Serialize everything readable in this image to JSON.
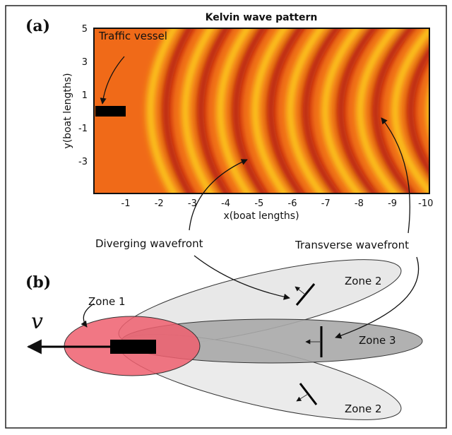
{
  "panel_a": {
    "label": "(a)",
    "title": "Kelvin wave pattern",
    "y_axis_label": "y(boat lengths)",
    "x_axis_label": "x(boat lengths)",
    "y_ticks": [
      "5",
      "3",
      "1",
      "-1",
      "-3"
    ],
    "x_ticks": [
      "-1",
      "-2",
      "-3",
      "-4",
      "-5",
      "-6",
      "-7",
      "-8",
      "-9",
      "-10"
    ],
    "vessel_label": "Traffic vessel"
  },
  "annotations": {
    "diverging": "Diverging wavefront",
    "transverse": "Transverse wavefront"
  },
  "panel_b": {
    "label": "(b)",
    "velocity": "v",
    "zones": [
      "Zone 1",
      "Zone 2",
      "Zone 3",
      "Zone 2"
    ]
  }
}
